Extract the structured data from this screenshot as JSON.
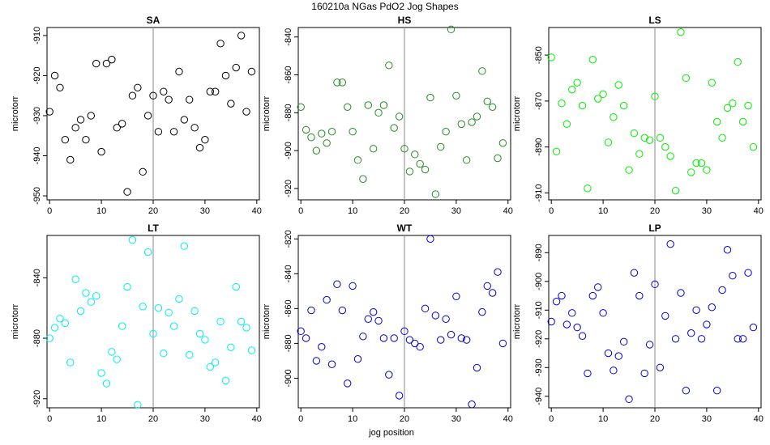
{
  "figure": {
    "title": "160210a   NGas PdO2 Jog Shapes",
    "xlabel": "jog position"
  },
  "chart_data": [
    {
      "type": "scatter",
      "title": "SA",
      "ylabel": "microtorr",
      "color": "#000000",
      "xlim": [
        -0.5,
        40.5
      ],
      "ylim": [
        -951,
        -908
      ],
      "xticks": [
        0,
        10,
        20,
        30,
        40
      ],
      "yticks": [
        -950,
        -940,
        -930,
        -920,
        -910
      ],
      "vline": 20,
      "x": [
        0,
        1,
        2,
        3,
        4,
        5,
        6,
        7,
        8,
        9,
        10,
        11,
        12,
        13,
        14,
        15,
        16,
        17,
        18,
        19,
        20,
        21,
        22,
        23,
        24,
        25,
        26,
        27,
        28,
        29,
        30,
        31,
        32,
        33,
        34,
        35,
        36,
        37,
        38,
        39
      ],
      "y": [
        -929,
        -920,
        -923,
        -936,
        -941,
        -933,
        -931,
        -936,
        -930,
        -917,
        -939,
        -917,
        -916,
        -933,
        -932,
        -949,
        -925,
        -923,
        -944,
        -930,
        -925,
        -934,
        -924,
        -926,
        -934,
        -919,
        -931,
        -926,
        -933,
        -938,
        -936,
        -924,
        -924,
        -912,
        -920,
        -927,
        -918,
        -910,
        -929,
        -919
      ]
    },
    {
      "type": "scatter",
      "title": "HS",
      "ylabel": "microtorr",
      "color": "#228b22",
      "xlim": [
        -0.5,
        40.5
      ],
      "ylim": [
        -926,
        -835
      ],
      "xticks": [
        0,
        10,
        20,
        30,
        40
      ],
      "yticks": [
        -840,
        -860,
        -880,
        -900,
        -920
      ],
      "vline": 20,
      "x": [
        0,
        1,
        2,
        3,
        4,
        5,
        6,
        7,
        8,
        9,
        10,
        11,
        12,
        13,
        14,
        15,
        16,
        17,
        18,
        19,
        20,
        21,
        22,
        23,
        24,
        25,
        26,
        27,
        28,
        29,
        30,
        31,
        32,
        33,
        34,
        35,
        36,
        37,
        38,
        39
      ],
      "y": [
        -877,
        -889,
        -893,
        -900,
        -891,
        -896,
        -890,
        -864,
        -864,
        -877,
        -890,
        -905,
        -915,
        -876,
        -899,
        -880,
        -876,
        -855,
        -888,
        -882,
        -899,
        -911,
        -902,
        -907,
        -910,
        -872,
        -923,
        -898,
        -890,
        -836,
        -871,
        -886,
        -905,
        -885,
        -882,
        -858,
        -874,
        -877,
        -904,
        -896
      ]
    },
    {
      "type": "scatter",
      "title": "LS",
      "ylabel": "microtorr",
      "color": "#00ee00",
      "xlim": [
        -0.5,
        40.5
      ],
      "ylim": [
        -913,
        -838
      ],
      "xticks": [
        0,
        10,
        20,
        30,
        40
      ],
      "yticks": [
        -850,
        -870,
        -890,
        -910
      ],
      "vline": 20,
      "x": [
        0,
        1,
        2,
        3,
        4,
        5,
        6,
        7,
        8,
        9,
        10,
        11,
        12,
        13,
        14,
        15,
        16,
        17,
        18,
        19,
        20,
        21,
        22,
        23,
        24,
        25,
        26,
        27,
        28,
        29,
        30,
        31,
        32,
        33,
        34,
        35,
        36,
        37,
        38,
        39
      ],
      "y": [
        -851,
        -892,
        -871,
        -880,
        -865,
        -862,
        -872,
        -908,
        -852,
        -869,
        -867,
        -888,
        -877,
        -863,
        -872,
        -900,
        -884,
        -893,
        -886,
        -887,
        -868,
        -886,
        -890,
        -894,
        -909,
        -840,
        -860,
        -901,
        -897,
        -897,
        -900,
        -862,
        -879,
        -886,
        -873,
        -871,
        -853,
        -879,
        -872,
        -890
      ]
    },
    {
      "type": "scatter",
      "title": "LT",
      "ylabel": "microtorr",
      "color": "#00eeee",
      "xlim": [
        -0.5,
        40.5
      ],
      "ylim": [
        -926,
        -812
      ],
      "xticks": [
        0,
        10,
        20,
        30,
        40
      ],
      "yticks": [
        -840,
        -880,
        -920
      ],
      "vline": 20,
      "x": [
        0,
        1,
        2,
        3,
        4,
        5,
        6,
        7,
        8,
        9,
        10,
        11,
        12,
        13,
        14,
        15,
        16,
        17,
        18,
        19,
        20,
        21,
        22,
        23,
        24,
        25,
        26,
        27,
        28,
        29,
        30,
        31,
        32,
        33,
        34,
        35,
        36,
        37,
        38,
        39
      ],
      "y": [
        -880,
        -873,
        -867,
        -870,
        -896,
        -841,
        -862,
        -850,
        -856,
        -852,
        -903,
        -910,
        -889,
        -894,
        -872,
        -846,
        -815,
        -924,
        -859,
        -823,
        -877,
        -860,
        -890,
        -863,
        -872,
        -854,
        -819,
        -891,
        -862,
        -877,
        -881,
        -899,
        -896,
        -869,
        -908,
        -886,
        -846,
        -869,
        -873,
        -888
      ]
    },
    {
      "type": "scatter",
      "title": "WT",
      "ylabel": "microtorr",
      "color": "#0000cd",
      "xlim": [
        -0.5,
        40.5
      ],
      "ylim": [
        -917,
        -818
      ],
      "xticks": [
        0,
        10,
        20,
        30,
        40
      ],
      "yticks": [
        -820,
        -840,
        -860,
        -880,
        -900
      ],
      "vline": 20,
      "x": [
        0,
        1,
        2,
        3,
        4,
        5,
        6,
        7,
        8,
        9,
        10,
        11,
        12,
        13,
        14,
        15,
        16,
        17,
        18,
        19,
        20,
        21,
        22,
        23,
        24,
        25,
        26,
        27,
        28,
        29,
        30,
        31,
        32,
        33,
        34,
        35,
        36,
        37,
        38,
        39
      ],
      "y": [
        -873,
        -877,
        -861,
        -890,
        -882,
        -855,
        -892,
        -846,
        -861,
        -903,
        -847,
        -889,
        -876,
        -866,
        -862,
        -867,
        -877,
        -898,
        -877,
        -910,
        -873,
        -878,
        -880,
        -882,
        -860,
        -820,
        -864,
        -878,
        -866,
        -875,
        -853,
        -877,
        -878,
        -915,
        -894,
        -862,
        -847,
        -851,
        -839,
        -880
      ]
    },
    {
      "type": "scatter",
      "title": "LP",
      "ylabel": "microtorr",
      "color": "#0000cd",
      "xlim": [
        -0.5,
        40.5
      ],
      "ylim": [
        -944,
        -884
      ],
      "xticks": [
        0,
        10,
        20,
        30,
        40
      ],
      "yticks": [
        -890,
        -900,
        -910,
        -920,
        -930,
        -940
      ],
      "vline": 20,
      "x": [
        0,
        1,
        2,
        3,
        4,
        5,
        6,
        7,
        8,
        9,
        10,
        11,
        12,
        13,
        14,
        15,
        16,
        17,
        18,
        19,
        20,
        21,
        22,
        23,
        24,
        25,
        26,
        27,
        28,
        29,
        30,
        31,
        32,
        33,
        34,
        35,
        36,
        37,
        38,
        39
      ],
      "y": [
        -914,
        -907,
        -905,
        -915,
        -911,
        -916,
        -919,
        -932,
        -905,
        -902,
        -911,
        -925,
        -931,
        -926,
        -921,
        -941,
        -897,
        -905,
        -932,
        -922,
        -901,
        -930,
        -912,
        -887,
        -920,
        -904,
        -938,
        -918,
        -910,
        -920,
        -915,
        -909,
        -938,
        -903,
        -889,
        -898,
        -920,
        -920,
        -897,
        -916
      ]
    }
  ]
}
